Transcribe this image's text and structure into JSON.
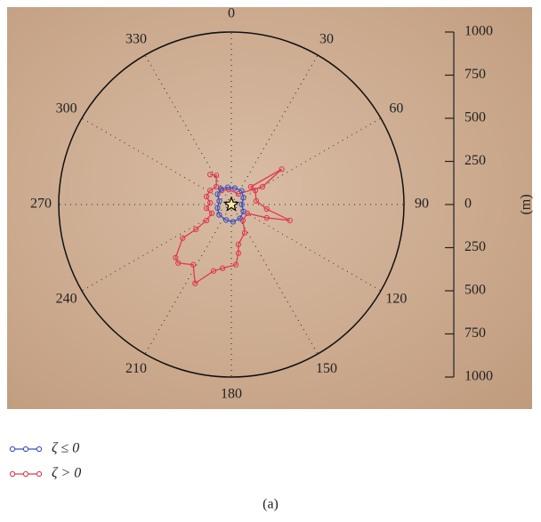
{
  "chart_data": {
    "type": "polar-track",
    "angle_ticks": [
      0,
      30,
      60,
      90,
      120,
      150,
      180,
      210,
      240,
      270,
      300,
      330
    ],
    "rlim": [
      0,
      1000
    ],
    "ylim": [
      -1000,
      1000
    ],
    "yticks": [
      {
        "value": 1000,
        "label": "1000"
      },
      {
        "value": 750,
        "label": "750"
      },
      {
        "value": 500,
        "label": "500"
      },
      {
        "value": 250,
        "label": "250"
      },
      0,
      {
        "value": -250,
        "label": "250"
      },
      {
        "value": -500,
        "label": "500"
      },
      {
        "value": -750,
        "label": "750"
      },
      {
        "value": -1000,
        "label": "1000"
      }
    ],
    "ylabel": "(m)",
    "caption": "(a)",
    "series": [
      {
        "name": "ζ ≤ 0",
        "color": "#3a4fc0",
        "x": [
          -60,
          -20,
          20,
          60,
          70,
          60,
          70,
          50,
          10,
          -30,
          -70,
          -80,
          -70,
          -80,
          -60
        ],
        "y": [
          90,
          100,
          95,
          80,
          40,
          0,
          -40,
          -80,
          -100,
          -90,
          -60,
          -20,
          20,
          60,
          90
        ]
      },
      {
        "name": "ζ > 0",
        "color": "#e03a4e",
        "x": [
          -123,
          -87,
          -87,
          -123,
          -144,
          -123,
          -144,
          -113,
          -144,
          -205,
          -282,
          -323,
          -308,
          -221,
          -210,
          -103,
          -51,
          26,
          41,
          41,
          77,
          67,
          92,
          205,
          339,
          205,
          144,
          139,
          113,
          292,
          180,
          41,
          -15,
          -56
        ],
        "y": [
          174,
          169,
          103,
          82,
          46,
          10,
          -21,
          -51,
          -92,
          -144,
          -195,
          -308,
          -339,
          -349,
          -457,
          -385,
          -369,
          -349,
          -282,
          -231,
          -164,
          -92,
          -51,
          -77,
          -92,
          -26,
          21,
          82,
          103,
          205,
          103,
          62,
          87,
          82
        ]
      }
    ]
  }
}
